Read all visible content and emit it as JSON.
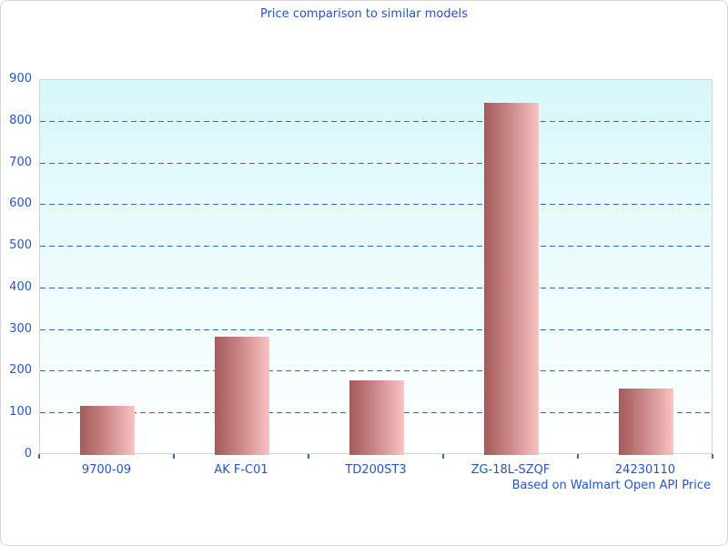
{
  "title": "Price comparison to similar models",
  "footer": "Based on Walmart Open API Price",
  "colors": {
    "accent_text": "#2256c7",
    "gridline": "#3366cc",
    "bar_gradient_start": "#a35a5a",
    "bar_gradient_end": "#fbc3c3",
    "plot_bg_top": "#d8f7fa",
    "plot_bg_bottom": "#feffff",
    "plot_border": "#ccd6d6"
  },
  "chart_data": {
    "type": "bar",
    "title": "Price comparison to similar models",
    "categories": [
      "9700-09",
      "AK F-C01",
      "TD200ST3",
      "ZG-18L-SZQF",
      "24230110"
    ],
    "values": [
      118,
      285,
      179,
      845,
      160
    ],
    "xlabel": "",
    "ylabel": "",
    "ylim": [
      0,
      900
    ],
    "ytick_interval": 100,
    "ytick_labels": [
      "0",
      "100",
      "200",
      "300",
      "400",
      "500",
      "600",
      "700",
      "800",
      "900"
    ],
    "grid": "horizontal-dashed",
    "legend": "none",
    "annotation": "Based on Walmart Open API Price"
  }
}
